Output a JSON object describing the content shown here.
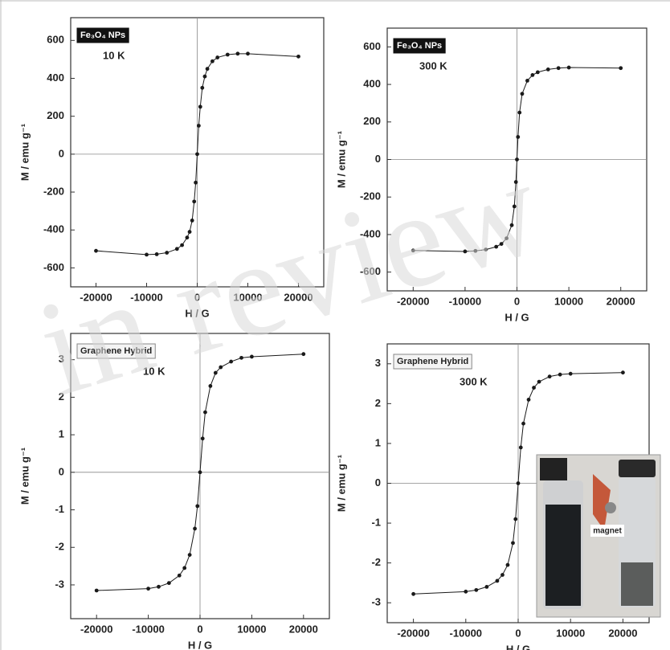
{
  "watermark": "in review",
  "chart_data": [
    {
      "type": "line",
      "annotations": [
        "Fe₃O₄ NPs",
        "10 K"
      ],
      "xlabel": "H / G",
      "ylabel": "M / emu g⁻¹",
      "x": [
        -20000,
        -10000,
        -8000,
        -6000,
        -4000,
        -3000,
        -2000,
        -1500,
        -1000,
        -600,
        -300,
        0,
        300,
        600,
        1000,
        1500,
        2000,
        3000,
        4000,
        6000,
        8000,
        10000,
        20000
      ],
      "values": [
        -510,
        -530,
        -528,
        -520,
        -500,
        -480,
        -440,
        -410,
        -350,
        -250,
        -150,
        0,
        150,
        250,
        350,
        410,
        450,
        490,
        510,
        525,
        530,
        530,
        515
      ],
      "color": "#1a1a1a",
      "xlim": [
        -25000,
        25000
      ],
      "xticks": [
        -20000,
        -10000,
        0,
        10000,
        20000
      ],
      "ylim": [
        -700,
        720
      ],
      "yticks": [
        -600,
        -400,
        -200,
        0,
        200,
        400,
        600
      ]
    },
    {
      "type": "line",
      "annotations": [
        "Fe₃O₄ NPs",
        "300 K"
      ],
      "xlabel": "H / G",
      "ylabel": "M / emu g⁻¹",
      "x": [
        -20000,
        -10000,
        -8000,
        -6000,
        -4000,
        -3000,
        -2000,
        -1000,
        -500,
        -200,
        0,
        200,
        500,
        1000,
        2000,
        3000,
        4000,
        6000,
        8000,
        10000,
        20000
      ],
      "values": [
        -485,
        -490,
        -487,
        -480,
        -465,
        -450,
        -420,
        -350,
        -250,
        -120,
        0,
        120,
        250,
        350,
        420,
        450,
        465,
        480,
        487,
        490,
        487
      ],
      "color": "#1a1a1a",
      "xlim": [
        -25000,
        25000
      ],
      "xticks": [
        -20000,
        -10000,
        0,
        10000,
        20000
      ],
      "ylim": [
        -700,
        700
      ],
      "yticks": [
        -600,
        -400,
        -200,
        0,
        200,
        400,
        600
      ]
    },
    {
      "type": "line",
      "annotations": [
        "Graphene Hybrid",
        "10 K"
      ],
      "xlabel": "H / G",
      "ylabel": "M / emu g⁻¹",
      "x": [
        -20000,
        -10000,
        -8000,
        -6000,
        -4000,
        -3000,
        -2000,
        -1000,
        -500,
        0,
        500,
        1000,
        2000,
        3000,
        4000,
        6000,
        8000,
        10000,
        20000
      ],
      "values": [
        -3.15,
        -3.1,
        -3.05,
        -2.95,
        -2.75,
        -2.55,
        -2.2,
        -1.5,
        -0.9,
        0,
        0.9,
        1.6,
        2.3,
        2.65,
        2.8,
        2.95,
        3.05,
        3.08,
        3.15
      ],
      "color": "#1a1a1a",
      "xlim": [
        -25000,
        25000
      ],
      "xticks": [
        -20000,
        -10000,
        0,
        10000,
        20000
      ],
      "ylim": [
        -3.9,
        3.7
      ],
      "yticks": [
        -3,
        -2,
        -1,
        0,
        1,
        2,
        3
      ]
    },
    {
      "type": "line",
      "annotations": [
        "Graphene Hybrid",
        "300 K",
        "magnet"
      ],
      "xlabel": "H / G",
      "ylabel": "M / emu g⁻¹",
      "x": [
        -20000,
        -10000,
        -8000,
        -6000,
        -4000,
        -3000,
        -2000,
        -1000,
        -500,
        0,
        500,
        1000,
        2000,
        3000,
        4000,
        6000,
        8000,
        10000,
        20000
      ],
      "values": [
        -2.78,
        -2.72,
        -2.68,
        -2.6,
        -2.45,
        -2.3,
        -2.05,
        -1.5,
        -0.9,
        0,
        0.9,
        1.5,
        2.1,
        2.4,
        2.55,
        2.68,
        2.73,
        2.75,
        2.78
      ],
      "color": "#1a1a1a",
      "xlim": [
        -25000,
        25000
      ],
      "xticks": [
        -20000,
        -10000,
        0,
        10000,
        20000
      ],
      "ylim": [
        -3.5,
        3.5
      ],
      "yticks": [
        -3,
        -2,
        -1,
        0,
        1,
        2,
        3
      ]
    }
  ]
}
